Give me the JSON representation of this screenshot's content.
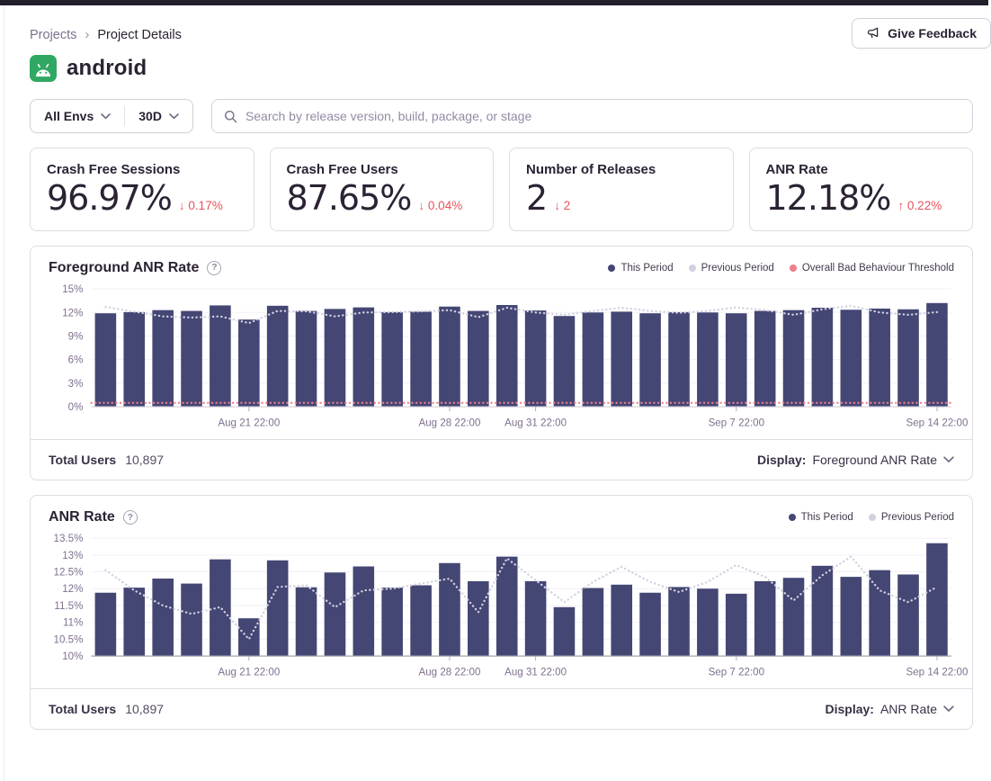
{
  "icons": {
    "breadcrumb_separator": "›",
    "help": "?",
    "arrow_down": "↓",
    "arrow_up": "↑"
  },
  "header": {
    "breadcrumb": {
      "items": [
        "Projects",
        "Project Details"
      ],
      "separator": "›"
    },
    "feedback_label": "Give Feedback",
    "project_title": "android"
  },
  "filters": {
    "env_label": "All Envs",
    "range_label": "30D",
    "search_placeholder": "Search by release version, build, package, or stage"
  },
  "stats": [
    {
      "label": "Crash Free Sessions",
      "value": "96.97%",
      "arrow": "↓",
      "delta": "0.17%"
    },
    {
      "label": "Crash Free Users",
      "value": "87.65%",
      "arrow": "↓",
      "delta": "0.04%"
    },
    {
      "label": "Number of Releases",
      "value": "2",
      "arrow": "↓",
      "delta": "2"
    },
    {
      "label": "ANR Rate",
      "value": "12.18%",
      "arrow": "↑",
      "delta": "0.22%"
    }
  ],
  "panels": [
    {
      "title": "Foreground ANR Rate",
      "help_icon": "?",
      "total_users_label": "Total Users",
      "total_users": "10,897",
      "display_label": "Display:",
      "display_value": "Foreground ANR Rate"
    },
    {
      "title": "ANR Rate",
      "help_icon": "?",
      "total_users_label": "Total Users",
      "total_users": "10,897",
      "display_label": "Display:",
      "display_value": "ANR Rate"
    }
  ],
  "colors": {
    "bar_purple": "#444674",
    "previous_period": "#d4d0e0",
    "threshold_pink": "#ef7d8b",
    "delta_red": "#e9515b",
    "android_green": "#30a863",
    "text_primary": "#2b2233",
    "text_secondary": "#80708f",
    "border": "#e0dbe4",
    "topbar": "#231e2c"
  },
  "chart_data": [
    {
      "type": "bar",
      "title": "Foreground ANR Rate",
      "xlabel": "",
      "ylabel": "",
      "ylim": [
        0,
        15
      ],
      "yticks": [
        0,
        3,
        6,
        9,
        12,
        15
      ],
      "grid": true,
      "legend_position": "top-right",
      "baseline_color": "#d9d4de",
      "legend": [
        {
          "label": "This Period",
          "color": "#444674"
        },
        {
          "label": "Previous Period",
          "color": "#d4d0e0"
        },
        {
          "label": "Overall Bad Behaviour Threshold",
          "color": "#ef7d8b"
        }
      ],
      "xticks": [
        {
          "i": 5,
          "label": "Aug 21 22:00"
        },
        {
          "i": 12,
          "label": "Aug 28 22:00"
        },
        {
          "i": 15,
          "label": "Aug 31 22:00"
        },
        {
          "i": 22,
          "label": "Sep 7 22:00"
        },
        {
          "i": 29,
          "label": "Sep 14 22:00"
        }
      ],
      "series": [
        {
          "name": "This Period",
          "type": "bar",
          "color": "#444674",
          "values": [
            11.9,
            12.05,
            12.3,
            12.2,
            12.9,
            11.1,
            12.85,
            12.2,
            12.45,
            12.65,
            12.05,
            12.1,
            12.75,
            12.2,
            12.95,
            12.25,
            11.55,
            12.0,
            12.1,
            11.9,
            12.05,
            12.0,
            11.9,
            12.2,
            12.3,
            12.6,
            12.35,
            12.5,
            12.4,
            13.2
          ]
        },
        {
          "name": "Previous Period",
          "type": "line",
          "color": "#d4d0e0",
          "values": [
            12.7,
            12.1,
            11.5,
            11.35,
            11.5,
            10.65,
            12.2,
            12.15,
            11.5,
            12.0,
            12.05,
            12.15,
            12.3,
            11.4,
            12.6,
            12.0,
            11.7,
            12.2,
            12.6,
            12.2,
            11.95,
            12.2,
            12.65,
            12.3,
            11.7,
            12.4,
            12.85,
            12.0,
            11.7,
            12.05
          ]
        },
        {
          "name": "Overall Bad Behaviour Threshold",
          "type": "line",
          "color": "#ef7d8b",
          "values": 0.5
        }
      ]
    },
    {
      "type": "bar",
      "title": "ANR Rate",
      "xlabel": "",
      "ylabel": "",
      "ylim": [
        10,
        13.5
      ],
      "yticks": [
        10,
        10.5,
        11,
        11.5,
        12,
        12.5,
        13,
        13.5
      ],
      "grid": true,
      "legend_position": "top-right",
      "baseline_color": "#a9a1b2",
      "legend": [
        {
          "label": "This Period",
          "color": "#444674"
        },
        {
          "label": "Previous Period",
          "color": "#d4d0e0"
        }
      ],
      "xticks": [
        {
          "i": 5,
          "label": "Aug 21 22:00"
        },
        {
          "i": 12,
          "label": "Aug 28 22:00"
        },
        {
          "i": 15,
          "label": "Aug 31 22:00"
        },
        {
          "i": 22,
          "label": "Sep 7 22:00"
        },
        {
          "i": 29,
          "label": "Sep 14 22:00"
        }
      ],
      "series": [
        {
          "name": "This Period",
          "type": "bar",
          "color": "#444674",
          "values": [
            11.88,
            12.03,
            12.3,
            12.15,
            12.87,
            11.12,
            12.84,
            12.04,
            12.48,
            12.66,
            12.03,
            12.1,
            12.76,
            12.22,
            12.95,
            12.22,
            11.45,
            12.02,
            12.12,
            11.88,
            12.05,
            12.0,
            11.85,
            12.22,
            12.32,
            12.68,
            12.35,
            12.55,
            12.42,
            13.35
          ]
        },
        {
          "name": "Previous Period",
          "type": "line",
          "color": "#d4d0e0",
          "values": [
            12.55,
            11.95,
            11.5,
            11.25,
            11.45,
            10.5,
            12.05,
            12.1,
            11.45,
            11.95,
            12.0,
            12.15,
            12.3,
            11.3,
            12.9,
            12.25,
            11.6,
            12.2,
            12.65,
            12.2,
            11.9,
            12.2,
            12.7,
            12.35,
            11.65,
            12.4,
            12.95,
            11.95,
            11.6,
            12.05
          ]
        }
      ]
    }
  ]
}
